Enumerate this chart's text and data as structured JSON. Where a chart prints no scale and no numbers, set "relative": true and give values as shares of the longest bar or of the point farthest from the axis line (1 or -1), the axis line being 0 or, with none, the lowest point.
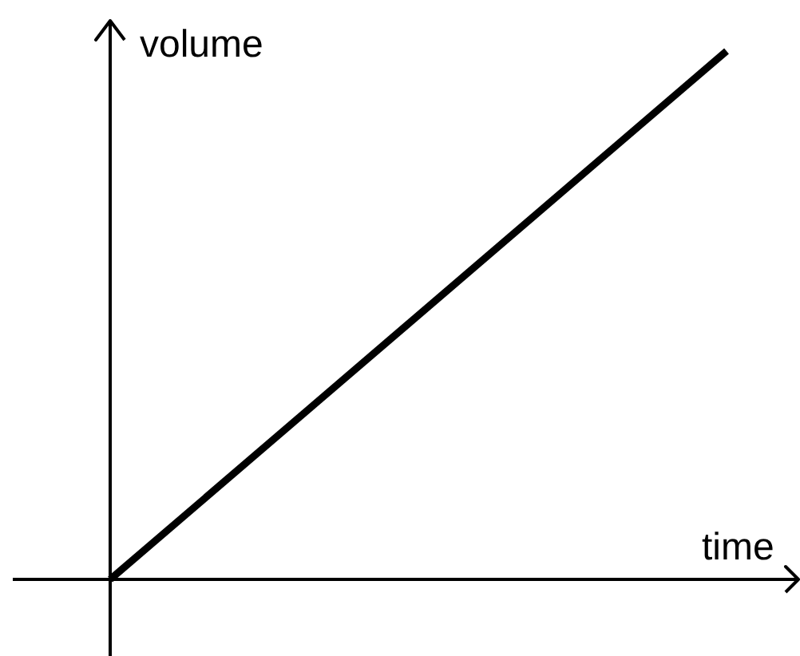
{
  "chart_data": {
    "type": "line",
    "xlabel": "time",
    "ylabel": "volume",
    "categories": [
      null,
      null
    ],
    "series": [
      {
        "color": "#000000",
        "values": [
          0,
          1
        ]
      }
    ],
    "relative": true
  }
}
